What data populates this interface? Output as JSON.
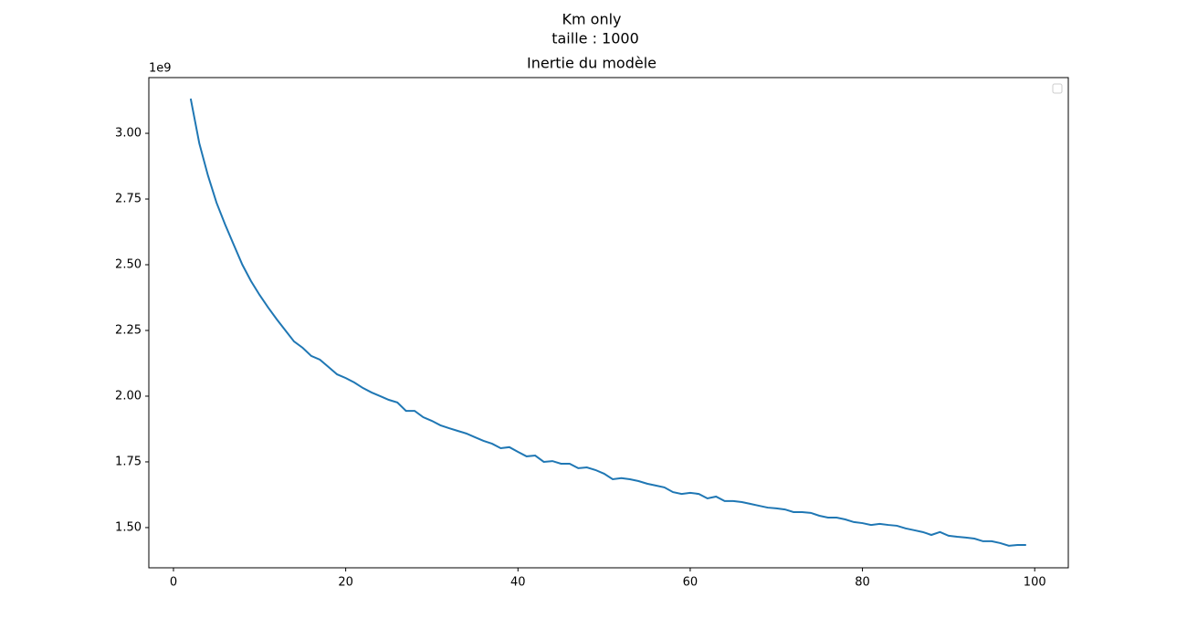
{
  "chart_data": {
    "type": "line",
    "suptitle": [
      "Km only",
      "taille : 1000"
    ],
    "title": "Inertie du modèle",
    "y_offset_label": "1e9",
    "legend": "upper right",
    "series": [
      {
        "color": "#1f77b4",
        "values": [
          3.132,
          2.962,
          2.84,
          2.736,
          2.653,
          2.576,
          2.5,
          2.438,
          2.385,
          2.337,
          2.292,
          2.25,
          2.208,
          2.184,
          2.153,
          2.139,
          2.111,
          2.083,
          2.069,
          2.052,
          2.031,
          2.014,
          2.0,
          1.986,
          1.976,
          1.944,
          1.944,
          1.92,
          1.906,
          1.889,
          1.878,
          1.868,
          1.858,
          1.844,
          1.83,
          1.819,
          1.802,
          1.806,
          1.788,
          1.771,
          1.774,
          1.75,
          1.753,
          1.743,
          1.743,
          1.726,
          1.729,
          1.719,
          1.705,
          1.684,
          1.688,
          1.684,
          1.677,
          1.667,
          1.66,
          1.653,
          1.635,
          1.628,
          1.632,
          1.628,
          1.611,
          1.618,
          1.601,
          1.601,
          1.597,
          1.59,
          1.583,
          1.576,
          1.573,
          1.569,
          1.559,
          1.559,
          1.556,
          1.545,
          1.538,
          1.538,
          1.531,
          1.521,
          1.517,
          1.51,
          1.514,
          1.51,
          1.507,
          1.497,
          1.49,
          1.483,
          1.472,
          1.483,
          1.469,
          1.465,
          1.462,
          1.458,
          1.448,
          1.448,
          1.441,
          1.431,
          1.434,
          1.434
        ]
      }
    ],
    "x": [
      2,
      3,
      4,
      5,
      6,
      7,
      8,
      9,
      10,
      11,
      12,
      13,
      14,
      15,
      16,
      17,
      18,
      19,
      20,
      21,
      22,
      23,
      24,
      25,
      26,
      27,
      28,
      29,
      30,
      31,
      32,
      33,
      34,
      35,
      36,
      37,
      38,
      39,
      40,
      41,
      42,
      43,
      44,
      45,
      46,
      47,
      48,
      49,
      50,
      51,
      52,
      53,
      54,
      55,
      56,
      57,
      58,
      59,
      60,
      61,
      62,
      63,
      64,
      65,
      66,
      67,
      68,
      69,
      70,
      71,
      72,
      73,
      74,
      75,
      76,
      77,
      78,
      79,
      80,
      81,
      82,
      83,
      84,
      85,
      86,
      87,
      88,
      89,
      90,
      91,
      92,
      93,
      94,
      95,
      96,
      97,
      98,
      99
    ],
    "xlim": [
      -2.86,
      103.9
    ],
    "ylim": [
      1.347,
      3.212
    ],
    "xticks": [
      0,
      20,
      40,
      60,
      80,
      100
    ],
    "yticks": [
      {
        "value": 1.5,
        "label": "1.50"
      },
      {
        "value": 1.75,
        "label": "1.75"
      },
      {
        "value": 2.0,
        "label": "2.00"
      },
      {
        "value": 2.25,
        "label": "2.25"
      },
      {
        "value": 2.5,
        "label": "2.50"
      },
      {
        "value": 2.75,
        "label": "2.75"
      },
      {
        "value": 3.0,
        "label": "3.00"
      }
    ]
  }
}
